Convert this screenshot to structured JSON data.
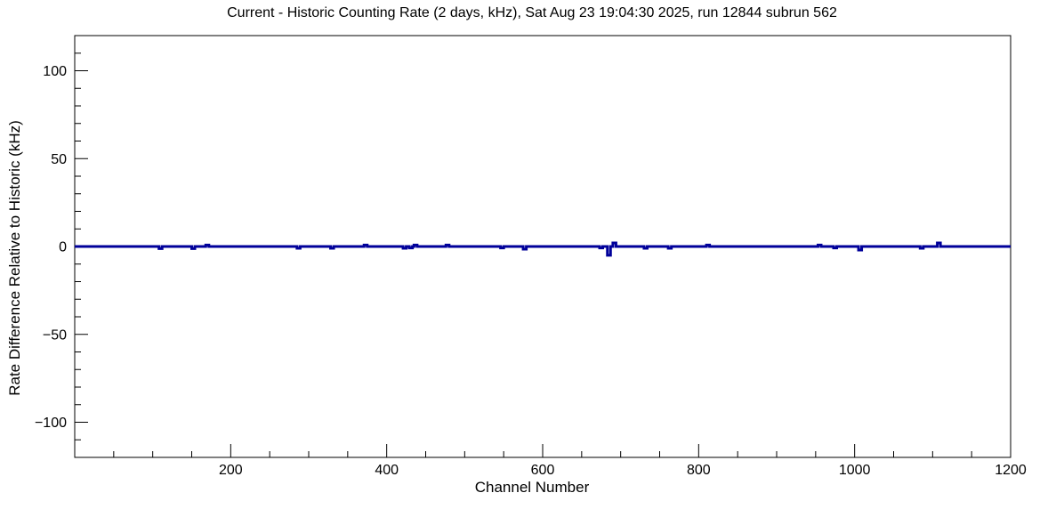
{
  "window": {
    "background": "#ffffff",
    "foreground": "#000000"
  },
  "chart_data": {
    "type": "line",
    "title": "Current - Historic Counting Rate (2 days, kHz), Sat Aug 23 19:04:30 2025, run 12844 subrun 562",
    "xlabel": "Channel Number",
    "ylabel": "Rate Difference Relative to Historic (kHz)",
    "run": "12844",
    "subrun": "562",
    "timestamp": "Sat Aug 23 19:04:30 2025",
    "xlim": [
      0,
      1200
    ],
    "ylim": [
      -120,
      120
    ],
    "x_major_ticks": [
      200,
      400,
      600,
      800,
      1000,
      1200
    ],
    "x_minor_step": 50,
    "y_major_ticks": [
      -100,
      -50,
      0,
      50,
      100
    ],
    "y_minor_step": 10,
    "grid": false,
    "legend": false,
    "tick_style": "inward",
    "line_color": "#00009a",
    "line_width": 3,
    "baseline_value_khz": 0,
    "spikes": [
      {
        "channel": 110,
        "value_khz": -1.2
      },
      {
        "channel": 152,
        "value_khz": -1.2
      },
      {
        "channel": 170,
        "value_khz": 0.8
      },
      {
        "channel": 287,
        "value_khz": -1.0
      },
      {
        "channel": 330,
        "value_khz": -1.0
      },
      {
        "channel": 373,
        "value_khz": 0.8
      },
      {
        "channel": 423,
        "value_khz": -1.0
      },
      {
        "channel": 431,
        "value_khz": -0.8
      },
      {
        "channel": 437,
        "value_khz": 0.8
      },
      {
        "channel": 478,
        "value_khz": 0.8
      },
      {
        "channel": 548,
        "value_khz": -0.8
      },
      {
        "channel": 577,
        "value_khz": -1.5
      },
      {
        "channel": 675,
        "value_khz": -0.8
      },
      {
        "channel": 685,
        "value_khz": -5.0
      },
      {
        "channel": 692,
        "value_khz": 2.0
      },
      {
        "channel": 732,
        "value_khz": -1.0
      },
      {
        "channel": 763,
        "value_khz": -1.0
      },
      {
        "channel": 812,
        "value_khz": 0.8
      },
      {
        "channel": 955,
        "value_khz": 0.8
      },
      {
        "channel": 975,
        "value_khz": -0.8
      },
      {
        "channel": 1007,
        "value_khz": -2.0
      },
      {
        "channel": 1086,
        "value_khz": -1.0
      },
      {
        "channel": 1108,
        "value_khz": 2.0
      }
    ]
  }
}
